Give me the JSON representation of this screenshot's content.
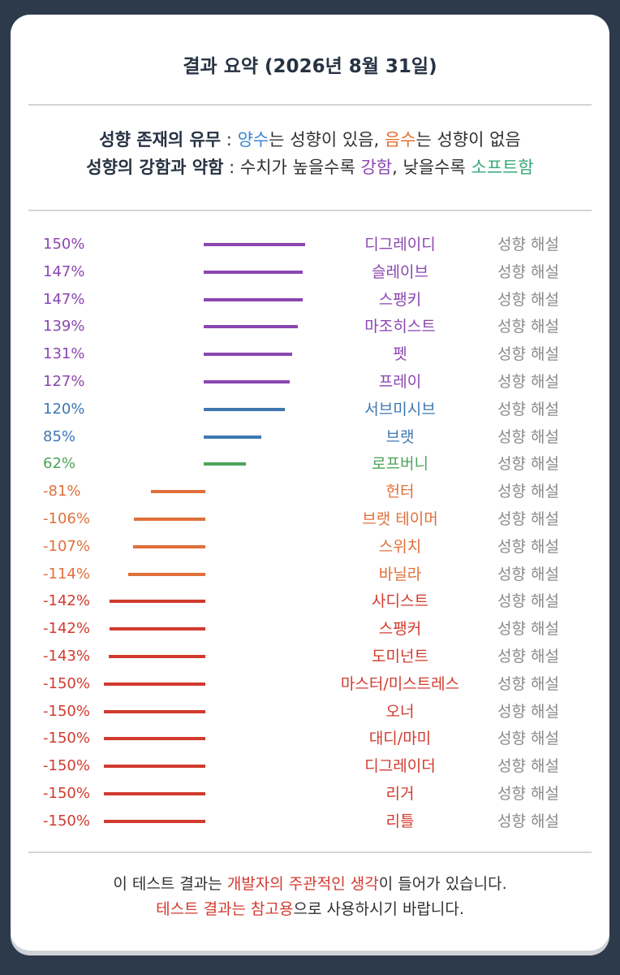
{
  "title": "결과 요약 (2026년 8월 31일)",
  "legend": {
    "line1": {
      "label": "성향 존재의 유무",
      "sep": " : ",
      "positive": "양수",
      "positive_rest": "는 성향이 있음, ",
      "negative": "음수",
      "negative_rest": "는 성향이 없음"
    },
    "line2": {
      "label": "성향의 강함과 약함",
      "sep": " : ",
      "mid1": "수치가 높을수록 ",
      "strong": "강함",
      "mid2": ", 낮을수록 ",
      "soft": "소프트함"
    }
  },
  "link_label": "성향 해설",
  "footer": {
    "line1_a": "이 테스트 결과는 ",
    "line1_b": "개발자의 주관적인 생각",
    "line1_c": "이 들어가 있습니다.",
    "line2_a": "테스트 결과는 참고용",
    "line2_b": "으로 사용하시기 바랍니다."
  },
  "colors": {
    "purple": "#8b46b0",
    "blue": "#3e78b2",
    "green": "#4ea35a",
    "orange": "#e0703a",
    "red": "#d23a2e"
  },
  "chart_data": {
    "type": "bar",
    "orientation": "horizontal-diverging",
    "unit": "%",
    "categories": [
      "디그레이디",
      "슬레이브",
      "스팽키",
      "마조히스트",
      "펫",
      "프레이",
      "서브미시브",
      "브랫",
      "로프버니",
      "헌터",
      "브랫 테이머",
      "스위치",
      "바닐라",
      "사디스트",
      "스팽커",
      "도미넌트",
      "마스터/미스트레스",
      "오너",
      "대디/마미",
      "디그레이더",
      "리거",
      "리틀"
    ],
    "values": [
      150,
      147,
      147,
      139,
      131,
      127,
      120,
      85,
      62,
      -81,
      -106,
      -107,
      -114,
      -142,
      -142,
      -143,
      -150,
      -150,
      -150,
      -150,
      -150,
      -150
    ],
    "labels": [
      "150%",
      "147%",
      "147%",
      "139%",
      "131%",
      "127%",
      "120%",
      "85%",
      "62%",
      "-81%",
      "-106%",
      "-107%",
      "-114%",
      "-142%",
      "-142%",
      "-143%",
      "-150%",
      "-150%",
      "-150%",
      "-150%",
      "-150%",
      "-150%"
    ],
    "color_keys": [
      "purple",
      "purple",
      "purple",
      "purple",
      "purple",
      "purple",
      "blue",
      "blue",
      "green",
      "orange",
      "orange",
      "orange",
      "orange",
      "red",
      "red",
      "red",
      "red",
      "red",
      "red",
      "red",
      "red",
      "red"
    ],
    "xlim": [
      -150,
      150
    ]
  }
}
